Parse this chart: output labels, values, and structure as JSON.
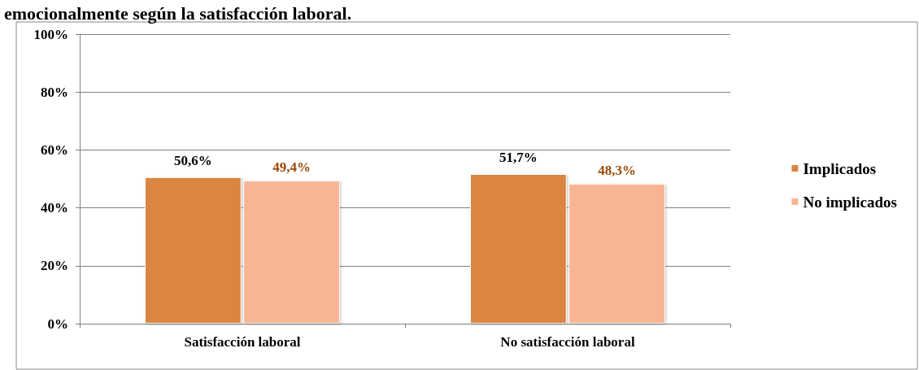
{
  "chart_data": {
    "type": "bar",
    "title": "emocionalmente según la satisfacción laboral.",
    "categories": [
      "Satisfacción laboral",
      "No satisfacción laboral"
    ],
    "series": [
      {
        "name": "Implicados",
        "color": "#db8542",
        "values": [
          50.6,
          51.7
        ],
        "value_labels": [
          "50,6%",
          "51,7%"
        ]
      },
      {
        "name": "No implicados",
        "color": "#f8b593",
        "values": [
          49.4,
          48.3
        ],
        "value_labels": [
          "49,4%",
          "48,3%"
        ]
      }
    ],
    "ylim": [
      0,
      100
    ],
    "yticks": [
      {
        "value": 0,
        "label": "0%"
      },
      {
        "value": 20,
        "label": "20%"
      },
      {
        "value": 40,
        "label": "40%"
      },
      {
        "value": 60,
        "label": "60%"
      },
      {
        "value": 80,
        "label": "80%"
      },
      {
        "value": 100,
        "label": "100%"
      }
    ],
    "grid": "y",
    "legend": "right"
  }
}
